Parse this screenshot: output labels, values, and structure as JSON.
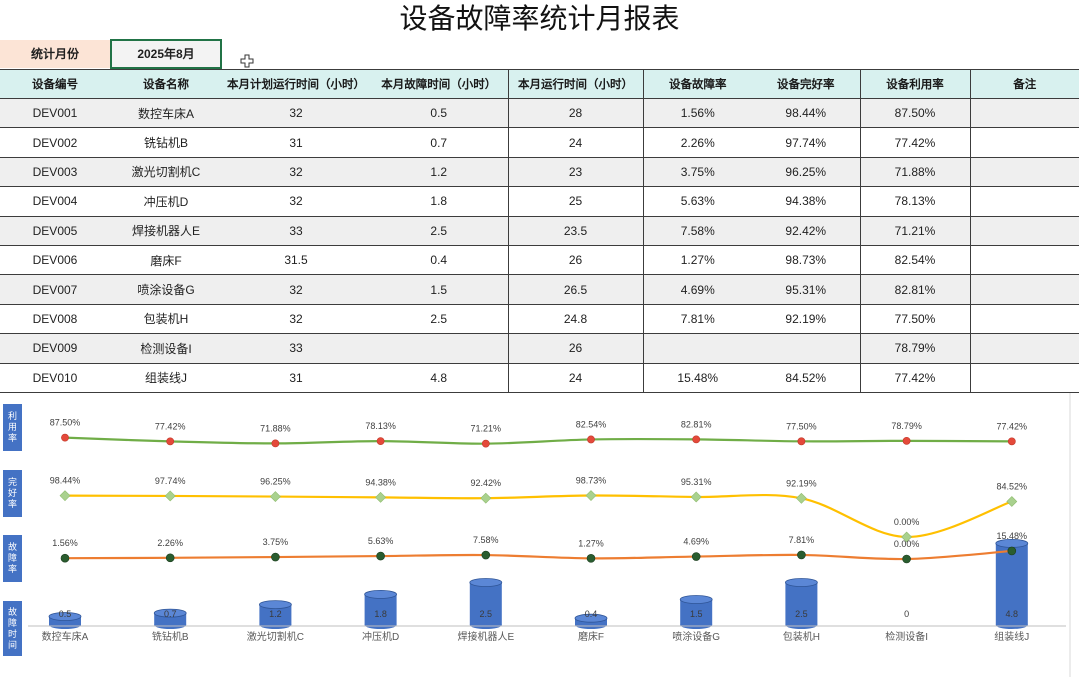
{
  "title": "设备故障率统计月报表",
  "month": {
    "label": "统计月份",
    "value": "2025年8月"
  },
  "table": {
    "headers": [
      "设备编号",
      "设备名称",
      "本月计划运行时间（小时）",
      "本月故障时间（小时）",
      "本月运行时间（小时）",
      "设备故障率",
      "设备完好率",
      "设备利用率",
      "备注"
    ],
    "rows": [
      [
        "DEV001",
        "数控车床A",
        "32",
        "0.5",
        "28",
        "1.56%",
        "98.44%",
        "87.50%",
        ""
      ],
      [
        "DEV002",
        "铣钻机B",
        "31",
        "0.7",
        "24",
        "2.26%",
        "97.74%",
        "77.42%",
        ""
      ],
      [
        "DEV003",
        "激光切割机C",
        "32",
        "1.2",
        "23",
        "3.75%",
        "96.25%",
        "71.88%",
        ""
      ],
      [
        "DEV004",
        "冲压机D",
        "32",
        "1.8",
        "25",
        "5.63%",
        "94.38%",
        "78.13%",
        ""
      ],
      [
        "DEV005",
        "焊接机器人E",
        "33",
        "2.5",
        "23.5",
        "7.58%",
        "92.42%",
        "71.21%",
        ""
      ],
      [
        "DEV006",
        "磨床F",
        "31.5",
        "0.4",
        "26",
        "1.27%",
        "98.73%",
        "82.54%",
        ""
      ],
      [
        "DEV007",
        "喷涂设备G",
        "32",
        "1.5",
        "26.5",
        "4.69%",
        "95.31%",
        "82.81%",
        ""
      ],
      [
        "DEV008",
        "包装机H",
        "32",
        "2.5",
        "24.8",
        "7.81%",
        "92.19%",
        "77.50%",
        ""
      ],
      [
        "DEV009",
        "检测设备I",
        "33",
        "",
        "26",
        "",
        "",
        "78.79%",
        ""
      ],
      [
        "DEV010",
        "组装线J",
        "31",
        "4.8",
        "24",
        "15.48%",
        "84.52%",
        "77.42%",
        ""
      ]
    ]
  },
  "chart_data": {
    "type": "line",
    "categories": [
      "数控车床A",
      "铣钻机B",
      "激光切割机C",
      "冲压机D",
      "焊接机器人E",
      "磨床F",
      "喷涂设备G",
      "包装机H",
      "检测设备I",
      "组装线J"
    ],
    "series": [
      {
        "name": "利用率",
        "type": "line",
        "smooth": true,
        "values": [
          87.5,
          77.42,
          71.88,
          78.13,
          71.21,
          82.54,
          82.81,
          77.5,
          78.79,
          77.42
        ],
        "labels": [
          "87.50%",
          "77.42%",
          "71.88%",
          "78.13%",
          "71.21%",
          "82.54%",
          "82.81%",
          "77.50%",
          "78.79%",
          "77.42%"
        ],
        "color": "#70ad47",
        "marker": "circle",
        "marker_color": "#e4493a"
      },
      {
        "name": "完好率",
        "type": "line",
        "smooth": true,
        "values": [
          98.44,
          97.74,
          96.25,
          94.38,
          92.42,
          98.73,
          95.31,
          92.19,
          0.0,
          84.52
        ],
        "labels": [
          "98.44%",
          "97.74%",
          "96.25%",
          "94.38%",
          "92.42%",
          "98.73%",
          "95.31%",
          "92.19%",
          "0.00%",
          "84.52%"
        ],
        "color": "#ffc000",
        "marker": "diamond",
        "marker_color": "#a9d18e"
      },
      {
        "name": "故障率",
        "type": "line",
        "smooth": true,
        "values": [
          1.56,
          2.26,
          3.75,
          5.63,
          7.58,
          1.27,
          4.69,
          7.81,
          0.0,
          15.48
        ],
        "labels": [
          "1.56%",
          "2.26%",
          "3.75%",
          "5.63%",
          "7.58%",
          "1.27%",
          "4.69%",
          "7.81%",
          "0.00%",
          "15.48%"
        ],
        "color": "#ed7d31",
        "marker": "circle",
        "marker_color": "#2a5d2f"
      },
      {
        "name": "故障时间",
        "type": "bar",
        "shape": "cylinder",
        "values": [
          0.5,
          0.7,
          1.2,
          1.8,
          2.5,
          0.4,
          1.5,
          2.5,
          0,
          4.8
        ],
        "labels": [
          "0.5",
          "0.7",
          "1.2",
          "1.8",
          "2.5",
          "0.4",
          "1.5",
          "2.5",
          "0",
          "4.8"
        ],
        "color": "#4472c4"
      }
    ],
    "grid": false,
    "data_labels": true
  },
  "colors": {
    "month_label_bg": "#fce4d6",
    "header_bg": "#d8f1ef",
    "stripe_bg": "#efefef",
    "selection_border": "#217346",
    "panel_label_bg": "#4472c4"
  }
}
